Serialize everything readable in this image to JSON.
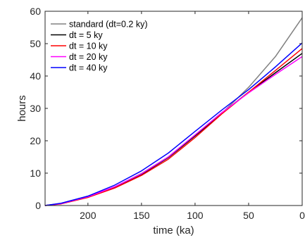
{
  "chart_data": {
    "type": "line",
    "xlabel": "time (ka)",
    "ylabel": "hours",
    "xlim": [
      240,
      0
    ],
    "ylim": [
      0,
      60
    ],
    "x_reversed": true,
    "x_ticks": [
      200,
      150,
      100,
      50,
      0
    ],
    "y_ticks": [
      0,
      10,
      20,
      30,
      40,
      50,
      60
    ],
    "x_tick_labels": [
      "200",
      "150",
      "100",
      "50",
      "0"
    ],
    "y_tick_labels": [
      "0",
      "10",
      "20",
      "30",
      "40",
      "50",
      "60"
    ],
    "grid": false,
    "legend_position": "top-left",
    "series": [
      {
        "name": "standard (dt=0.2 ky)",
        "color": "#808080",
        "x": [
          240,
          225,
          200,
          175,
          150,
          125,
          100,
          75,
          50,
          25,
          0
        ],
        "y": [
          0,
          0.6,
          2.6,
          5.7,
          9.9,
          15.0,
          21.6,
          28.5,
          36.5,
          46.0,
          58.0
        ]
      },
      {
        "name": "dt = 5 ky",
        "color": "#000000",
        "x": [
          240,
          225,
          200,
          175,
          150,
          125,
          100,
          75,
          50,
          25,
          0
        ],
        "y": [
          0,
          0.6,
          2.6,
          5.6,
          9.6,
          14.8,
          21.5,
          28.5,
          35.0,
          41.0,
          47.0
        ]
      },
      {
        "name": "dt = 10 ky",
        "color": "#ff0000",
        "x": [
          240,
          225,
          200,
          175,
          150,
          125,
          100,
          75,
          50,
          25,
          0
        ],
        "y": [
          0,
          0.5,
          2.5,
          5.4,
          9.3,
          14.3,
          21.0,
          28.3,
          35.0,
          41.7,
          48.5
        ]
      },
      {
        "name": "dt = 20 ky",
        "color": "#ff00ff",
        "x": [
          240,
          225,
          200,
          175,
          150,
          125,
          100,
          75,
          50,
          25,
          0
        ],
        "y": [
          0,
          0.6,
          2.7,
          5.8,
          9.8,
          15.0,
          21.8,
          28.7,
          34.8,
          40.5,
          46.0
        ]
      },
      {
        "name": "dt = 40 ky",
        "color": "#0000ff",
        "x": [
          240,
          225,
          200,
          175,
          150,
          125,
          100,
          75,
          50,
          25,
          0
        ],
        "y": [
          0,
          0.7,
          2.9,
          6.3,
          10.7,
          16.2,
          22.9,
          29.5,
          35.8,
          42.8,
          50.2
        ]
      }
    ]
  }
}
